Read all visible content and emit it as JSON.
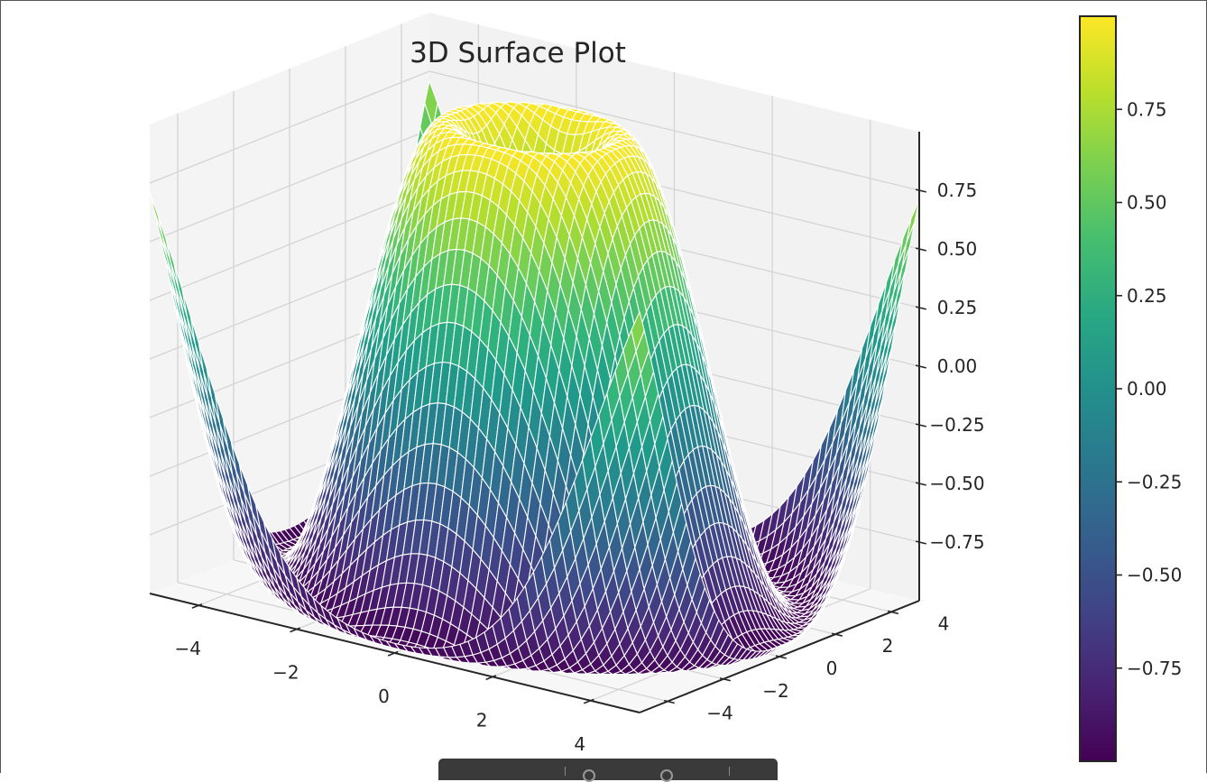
{
  "chart_data": {
    "type": "surface3d",
    "title": "3D Surface Plot",
    "function": "z = sin(sqrt(x^2 + y^2))",
    "x_range": [
      -5,
      5
    ],
    "y_range": [
      -5,
      5
    ],
    "z_range": [
      -1,
      1
    ],
    "grid": true,
    "colormap": "viridis",
    "x_ticks": [
      "−4",
      "−2",
      "0",
      "2",
      "4"
    ],
    "x_tick_values": [
      -4,
      -2,
      0,
      2,
      4
    ],
    "y_ticks": [
      "−4",
      "−2",
      "0",
      "2",
      "4"
    ],
    "y_tick_values": [
      -4,
      -2,
      0,
      2,
      4
    ],
    "z_ticks": [
      "−0.75",
      "−0.50",
      "−0.25",
      "0.00",
      "0.25",
      "0.50",
      "0.75"
    ],
    "z_tick_values": [
      -0.75,
      -0.5,
      -0.25,
      0,
      0.25,
      0.5,
      0.75
    ],
    "colorbar": {
      "range": [
        -1,
        1
      ],
      "ticks": [
        "0.75",
        "0.50",
        "0.25",
        "0.00",
        "−0.25",
        "−0.50",
        "−0.75"
      ],
      "tick_values": [
        0.75,
        0.5,
        0.25,
        0,
        -0.25,
        -0.5,
        -0.75
      ]
    },
    "colors": {
      "pane": "#f2f2f2",
      "gridline": "#d4d4d4",
      "axis": "#262626",
      "mesh_edge": "#ffffff"
    }
  }
}
